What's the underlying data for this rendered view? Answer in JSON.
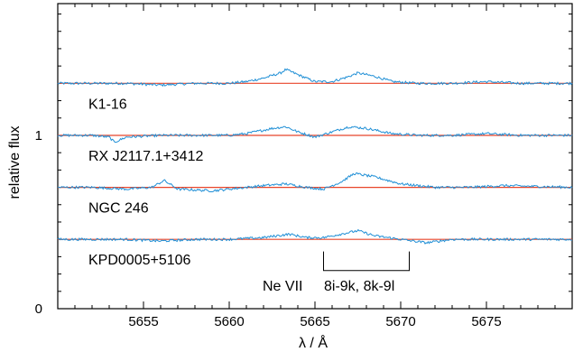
{
  "chart_data": {
    "type": "line",
    "title": "",
    "xlabel": "λ / Å",
    "ylabel": "relative flux",
    "xlim": [
      5650,
      5680
    ],
    "ylim": [
      0,
      1.76
    ],
    "x_ticks": [
      5655,
      5660,
      5665,
      5670,
      5675
    ],
    "x_tick_labels": [
      "5655",
      "5660",
      "5665",
      "5670",
      "5675"
    ],
    "y_ticks": [
      0,
      1
    ],
    "y_tick_labels": [
      "0",
      "1"
    ],
    "grid": false,
    "legend": "none",
    "colors": {
      "observed": "#1f8fd6",
      "model": "#e8452a",
      "axes": "#000000"
    },
    "series": [
      {
        "name": "K1-16",
        "continuum": 1.3,
        "model": [
          [
            5650,
            1.3
          ],
          [
            5680,
            1.3
          ]
        ],
        "observed": [
          [
            5650,
            1.3
          ],
          [
            5652,
            1.3
          ],
          [
            5654,
            1.3
          ],
          [
            5656,
            1.29
          ],
          [
            5658,
            1.3
          ],
          [
            5660,
            1.3
          ],
          [
            5661,
            1.31
          ],
          [
            5662,
            1.33
          ],
          [
            5663,
            1.36
          ],
          [
            5663.3,
            1.38
          ],
          [
            5664,
            1.35
          ],
          [
            5665,
            1.31
          ],
          [
            5666,
            1.31
          ],
          [
            5667,
            1.34
          ],
          [
            5667.5,
            1.36
          ],
          [
            5668.5,
            1.34
          ],
          [
            5669.5,
            1.31
          ],
          [
            5671,
            1.3
          ],
          [
            5673,
            1.3
          ],
          [
            5675,
            1.31
          ],
          [
            5677,
            1.3
          ],
          [
            5680,
            1.3
          ]
        ]
      },
      {
        "name": "RX J2117.1+3412",
        "continuum": 1.0,
        "model": [
          [
            5650,
            1.0
          ],
          [
            5680,
            1.0
          ]
        ],
        "observed": [
          [
            5650,
            1.0
          ],
          [
            5652,
            1.0
          ],
          [
            5653,
            0.99
          ],
          [
            5653.3,
            0.96
          ],
          [
            5654,
            0.99
          ],
          [
            5656,
            1.0
          ],
          [
            5658,
            1.0
          ],
          [
            5660,
            1.0
          ],
          [
            5661,
            1.01
          ],
          [
            5662.5,
            1.04
          ],
          [
            5663.3,
            1.05
          ],
          [
            5664,
            1.02
          ],
          [
            5665,
            0.99
          ],
          [
            5666,
            1.02
          ],
          [
            5667,
            1.05
          ],
          [
            5668,
            1.04
          ],
          [
            5669.5,
            1.01
          ],
          [
            5671,
            1.0
          ],
          [
            5673,
            1.0
          ],
          [
            5675,
            1.01
          ],
          [
            5677,
            1.0
          ],
          [
            5680,
            1.0
          ]
        ]
      },
      {
        "name": "NGC 246",
        "continuum": 0.7,
        "model": [
          [
            5650,
            0.7
          ],
          [
            5680,
            0.7
          ]
        ],
        "observed": [
          [
            5650,
            0.7
          ],
          [
            5652,
            0.7
          ],
          [
            5654,
            0.69
          ],
          [
            5655.5,
            0.7
          ],
          [
            5656.2,
            0.74
          ],
          [
            5657,
            0.69
          ],
          [
            5659,
            0.68
          ],
          [
            5660,
            0.69
          ],
          [
            5662,
            0.71
          ],
          [
            5663.3,
            0.72
          ],
          [
            5664.5,
            0.7
          ],
          [
            5665.5,
            0.69
          ],
          [
            5666.5,
            0.73
          ],
          [
            5667.3,
            0.78
          ],
          [
            5668.5,
            0.76
          ],
          [
            5670,
            0.72
          ],
          [
            5672,
            0.7
          ],
          [
            5674,
            0.7
          ],
          [
            5676,
            0.71
          ],
          [
            5680,
            0.7
          ]
        ]
      },
      {
        "name": "KPD0005+5106",
        "continuum": 0.4,
        "model": [
          [
            5650,
            0.4
          ],
          [
            5680,
            0.4
          ]
        ],
        "observed": [
          [
            5650,
            0.4
          ],
          [
            5652,
            0.4
          ],
          [
            5654,
            0.4
          ],
          [
            5656,
            0.39
          ],
          [
            5658,
            0.4
          ],
          [
            5660,
            0.4
          ],
          [
            5662,
            0.41
          ],
          [
            5663.5,
            0.43
          ],
          [
            5664.5,
            0.41
          ],
          [
            5665.5,
            0.41
          ],
          [
            5666.5,
            0.43
          ],
          [
            5667.5,
            0.45
          ],
          [
            5668.5,
            0.42
          ],
          [
            5670,
            0.4
          ],
          [
            5671.5,
            0.38
          ],
          [
            5673,
            0.4
          ],
          [
            5676,
            0.4
          ],
          [
            5680,
            0.4
          ]
        ]
      }
    ],
    "annotation": {
      "label": "Ne VII",
      "transition": "8i-9k, 8k-9l",
      "x_start": 5665.5,
      "x_end": 5670.5,
      "y_top": 0.33,
      "y_bottom": 0.22
    }
  }
}
